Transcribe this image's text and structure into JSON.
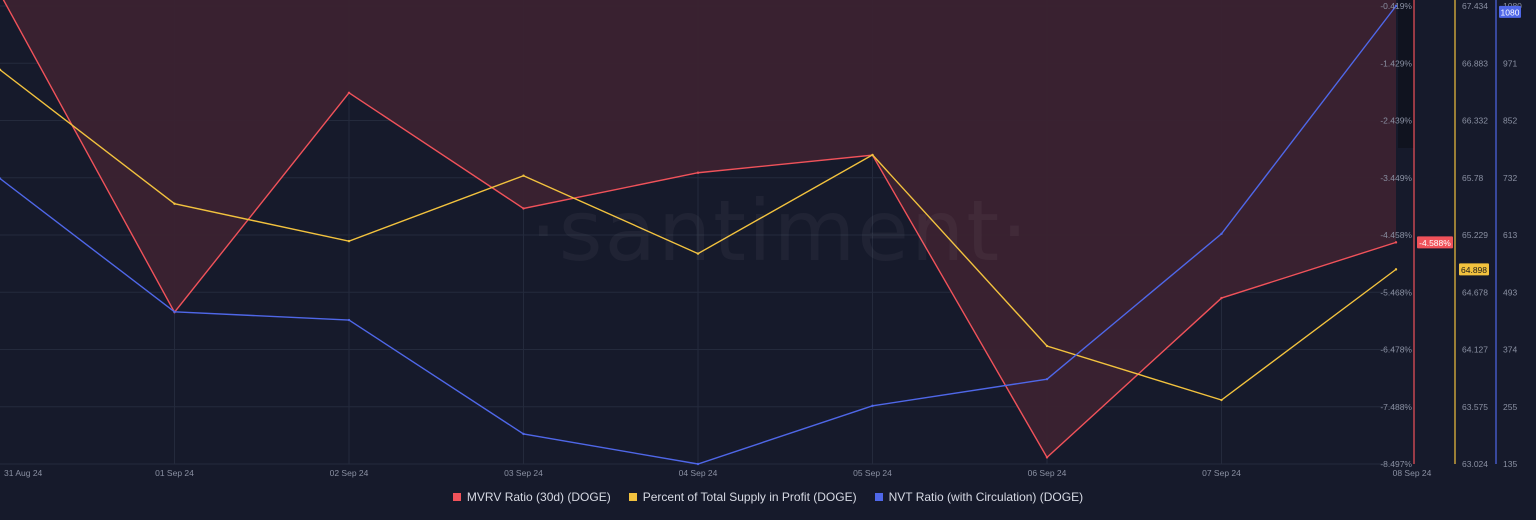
{
  "watermark": "·santiment·",
  "colors": {
    "mvrv": "#f0525a",
    "profit": "#f2c23e",
    "nvt": "#4f67e8",
    "background": "#161a2b",
    "fill": "#3b2230"
  },
  "chart_data": {
    "type": "line",
    "x": [
      "31 Aug 24",
      "01 Sep 24",
      "02 Sep 24",
      "03 Sep 24",
      "04 Sep 24",
      "05 Sep 24",
      "06 Sep 24",
      "07 Sep 24",
      "08 Sep 24"
    ],
    "series": [
      {
        "name": "MVRV Ratio (30d) (DOGE)",
        "axis": "mvrv",
        "values": [
          -0.2,
          -5.82,
          -1.95,
          -3.99,
          -3.36,
          -3.05,
          -8.38,
          -5.57,
          -4.588
        ]
      },
      {
        "name": "Percent of Total Supply in Profit (DOGE)",
        "axis": "profit",
        "values": [
          66.82,
          65.53,
          65.17,
          65.8,
          65.05,
          66.0,
          64.16,
          63.64,
          64.898
        ]
      },
      {
        "name": "NVT Ratio (with Circulation) (DOGE)",
        "axis": "nvt",
        "values": [
          724,
          449,
          432,
          197,
          135,
          255,
          310,
          610,
          1080
        ]
      }
    ],
    "axes": {
      "mvrv": {
        "min": -8.497,
        "max": -0.419,
        "ticks": [
          "-0.419%",
          "-1.429%",
          "-2.439%",
          "-3.449%",
          "-4.458%",
          "-5.468%",
          "-6.478%",
          "-7.488%",
          "-8.497%"
        ],
        "badge": "-4.588%"
      },
      "profit": {
        "min": 63.024,
        "max": 67.434,
        "ticks": [
          "67.434",
          "66.883",
          "66.332",
          "65.78",
          "65.229",
          "64.678",
          "64.127",
          "63.575",
          "63.024"
        ],
        "badge": "64.898"
      },
      "nvt": {
        "min": 135,
        "max": 1080,
        "ticks": [
          "1080",
          "971",
          "852",
          "732",
          "613",
          "493",
          "374",
          "255",
          "135"
        ],
        "badge": "1080"
      }
    },
    "fill_under": "mvrv",
    "grid": true,
    "legend_position": "bottom-center"
  }
}
